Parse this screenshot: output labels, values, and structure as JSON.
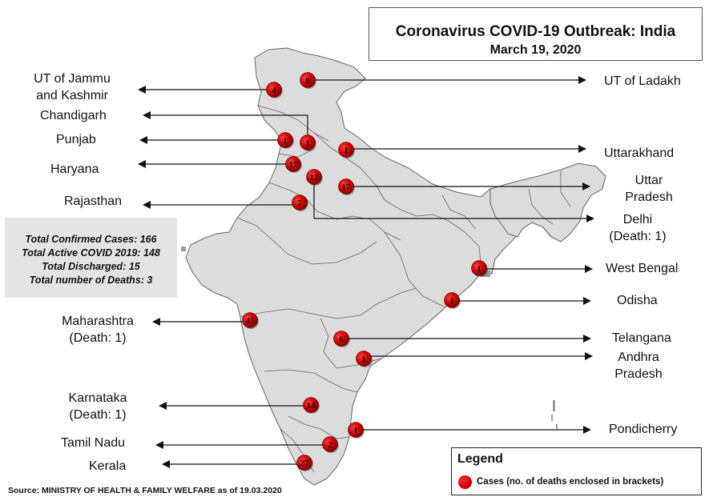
{
  "title": "Coronavirus COVID-19 Outbreak: India",
  "date": "March 19, 2020",
  "stats": [
    "Total Confirmed Cases: 166",
    "Total Active COVID 2019: 148",
    "Total Discharged: 15",
    "Total number of Deaths: 3"
  ],
  "legend": {
    "title": "Legend",
    "text": "Cases (no. of deaths enclosed in brackets)"
  },
  "source": "Source: MINISTRY OF HEALTH & FAMILY WELFARE as of 19.03.2020",
  "colors": {
    "marker": "#cc0000",
    "map_fill": "#dcdcdc",
    "border": "#555555"
  },
  "regions": [
    {
      "name": "UT of Jammu and Kashmir",
      "lines": [
        "UT of Jammu",
        "and Kashmir"
      ],
      "cases": "4"
    },
    {
      "name": "UT of Ladakh",
      "lines": [
        "UT of Ladakh"
      ],
      "cases": "8"
    },
    {
      "name": "Chandigarh",
      "lines": [
        "Chandigarh"
      ],
      "cases": "1"
    },
    {
      "name": "Punjab",
      "lines": [
        "Punjab"
      ],
      "cases": "1"
    },
    {
      "name": "Uttarakhand",
      "lines": [
        "Uttarakhand"
      ],
      "cases": "1"
    },
    {
      "name": "Haryana",
      "lines": [
        "Haryana"
      ],
      "cases": "17"
    },
    {
      "name": "Uttar Pradesh",
      "lines": [
        "Uttar",
        "Pradesh"
      ],
      "cases": "17"
    },
    {
      "name": "Delhi",
      "lines": [
        "Delhi",
        "(Death: 1)"
      ],
      "cases": "12"
    },
    {
      "name": "Rajasthan",
      "lines": [
        "Rajasthan"
      ],
      "cases": "7"
    },
    {
      "name": "West Bengal",
      "lines": [
        "West Bengal"
      ],
      "cases": "1"
    },
    {
      "name": "Odisha",
      "lines": [
        "Odisha"
      ],
      "cases": "1"
    },
    {
      "name": "Maharashtra",
      "lines": [
        "Maharashtra",
        "(Death: 1)"
      ],
      "cases": "45"
    },
    {
      "name": "Telangana",
      "lines": [
        "Telangana"
      ],
      "cases": "6"
    },
    {
      "name": "Andhra Pradesh",
      "lines": [
        "Andhra",
        "Pradesh"
      ],
      "cases": "1"
    },
    {
      "name": "Karnataka",
      "lines": [
        "Karnataka",
        "(Death: 1)"
      ],
      "cases": "14"
    },
    {
      "name": "Pondicherry",
      "lines": [
        "Pondicherry"
      ],
      "cases": "1"
    },
    {
      "name": "Tamil Nadu",
      "lines": [
        "Tamil Nadu"
      ],
      "cases": "2"
    },
    {
      "name": "Kerala",
      "lines": [
        "Kerala"
      ],
      "cases": "27"
    }
  ]
}
